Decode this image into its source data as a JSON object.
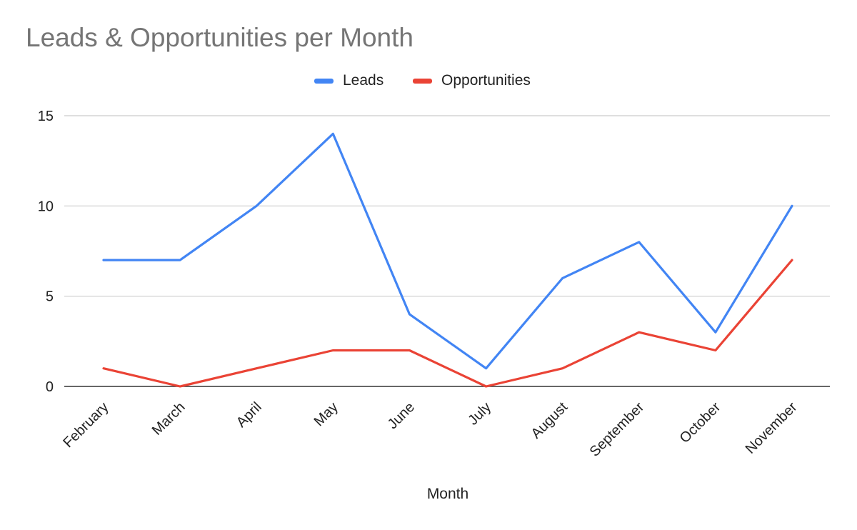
{
  "chart_data": {
    "type": "line",
    "title": "Leads & Opportunities per Month",
    "xlabel": "Month",
    "ylabel": "",
    "ylim": [
      0,
      15
    ],
    "yticks": [
      0,
      5,
      10,
      15
    ],
    "grid": true,
    "legend_position": "top",
    "categories": [
      "February",
      "March",
      "April",
      "May",
      "June",
      "July",
      "August",
      "September",
      "October",
      "November"
    ],
    "series": [
      {
        "name": "Leads",
        "color": "#4285f4",
        "values": [
          7,
          7,
          10,
          14,
          4,
          1,
          6,
          8,
          3,
          10
        ]
      },
      {
        "name": "Opportunities",
        "color": "#ea4335",
        "values": [
          1,
          0,
          1,
          2,
          2,
          0,
          1,
          3,
          2,
          7
        ]
      }
    ]
  }
}
